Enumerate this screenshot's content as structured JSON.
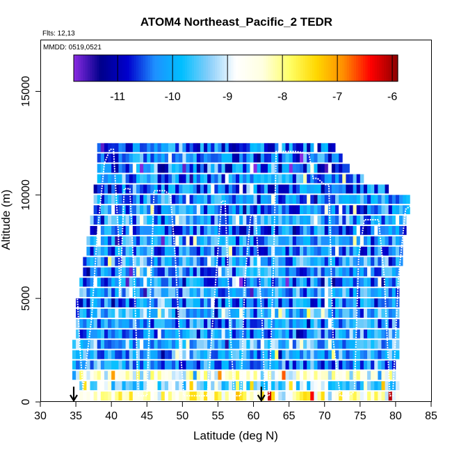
{
  "chart_data": {
    "type": "heatmap",
    "title": "ATOM4 Northeast_Pacific_2 TEDR",
    "flights_label": "Flts: 12,13",
    "dates_label": "MMDD: 0519,0521",
    "xlabel": "Latitude (deg N)",
    "ylabel": "Altitude (m)",
    "xlim": [
      30,
      85
    ],
    "ylim": [
      0,
      17500
    ],
    "xticks": [
      "30",
      "35",
      "40",
      "45",
      "50",
      "55",
      "60",
      "65",
      "70",
      "75",
      "80",
      "85"
    ],
    "yticks": [
      "0",
      "5000",
      "10000",
      "15000"
    ],
    "colorbar": {
      "range": [
        -11.8,
        -5.9
      ],
      "ticks": [
        "-11",
        "-10",
        "-9",
        "-8",
        "-7",
        "-6"
      ],
      "colors": [
        "#8a2be2",
        "#00008b",
        "#0000cd",
        "#1e90ff",
        "#00bfff",
        "#87cefa",
        "#ffffff",
        "#ffffe0",
        "#ffff66",
        "#ffd700",
        "#ff8c00",
        "#ff0000",
        "#8b0000"
      ]
    },
    "cells": {
      "bin_size_lat": 0.5,
      "bin_size_alt": 500,
      "rows": [
        {
          "alt": 250,
          "lat_min": 35.5,
          "lat_max": 80.5,
          "base": -8.2
        },
        {
          "alt": 750,
          "lat_min": 35.5,
          "lat_max": 80.5,
          "base": -9.3
        },
        {
          "alt": 1250,
          "lat_min": 34.5,
          "lat_max": 80.0,
          "base": -8.6
        },
        {
          "alt": 1750,
          "lat_min": 34.5,
          "lat_max": 80.0,
          "base": -10.1
        },
        {
          "alt": 2250,
          "lat_min": 34.5,
          "lat_max": 80.5,
          "base": -10.0
        },
        {
          "alt": 2750,
          "lat_min": 34.5,
          "lat_max": 80.5,
          "base": -9.8
        },
        {
          "alt": 3250,
          "lat_min": 35.0,
          "lat_max": 80.5,
          "base": -10.2
        },
        {
          "alt": 3750,
          "lat_min": 35.0,
          "lat_max": 80.5,
          "base": -10.1
        },
        {
          "alt": 4250,
          "lat_min": 35.0,
          "lat_max": 80.5,
          "base": -9.9
        },
        {
          "alt": 4750,
          "lat_min": 35.0,
          "lat_max": 80.5,
          "base": -10.3
        },
        {
          "alt": 5250,
          "lat_min": 35.5,
          "lat_max": 80.5,
          "base": -10.0
        },
        {
          "alt": 5750,
          "lat_min": 35.5,
          "lat_max": 80.5,
          "base": -10.2
        },
        {
          "alt": 6250,
          "lat_min": 36.0,
          "lat_max": 80.5,
          "base": -10.1
        },
        {
          "alt": 6750,
          "lat_min": 36.0,
          "lat_max": 81.0,
          "base": -10.0
        },
        {
          "alt": 7250,
          "lat_min": 36.5,
          "lat_max": 81.0,
          "base": -10.2
        },
        {
          "alt": 7750,
          "lat_min": 36.5,
          "lat_max": 81.0,
          "base": -10.1
        },
        {
          "alt": 8250,
          "lat_min": 37.0,
          "lat_max": 81.5,
          "base": -10.3
        },
        {
          "alt": 8750,
          "lat_min": 37.0,
          "lat_max": 81.5,
          "base": -10.0
        },
        {
          "alt": 9250,
          "lat_min": 37.5,
          "lat_max": 82.0,
          "base": -10.2
        },
        {
          "alt": 9750,
          "lat_min": 37.5,
          "lat_max": 82.0,
          "base": -10.1
        },
        {
          "alt": 10250,
          "lat_min": 37.5,
          "lat_max": 79.0,
          "base": -10.4
        },
        {
          "alt": 10750,
          "lat_min": 38.0,
          "lat_max": 75.5,
          "base": -10.2
        },
        {
          "alt": 11250,
          "lat_min": 38.0,
          "lat_max": 73.5,
          "base": -10.5
        },
        {
          "alt": 11750,
          "lat_min": 38.0,
          "lat_max": 72.5,
          "base": -10.3
        },
        {
          "alt": 12250,
          "lat_min": 38.0,
          "lat_max": 71.5,
          "base": -10.4
        }
      ]
    },
    "series": [
      {
        "name": "flight-altitude-track",
        "lat": [
          35.2,
          35.6,
          36.0,
          37.2,
          38.0,
          39.0,
          39.8,
          40.3,
          41.0,
          41.2,
          41.8,
          42.6,
          43.2,
          43.8,
          45.0,
          46.0,
          47.5,
          48.3,
          49.0,
          49.6,
          50.2,
          51.0,
          52.0,
          53.5,
          55.5,
          56.0,
          56.8,
          57.3,
          58.2,
          58.8,
          59.6,
          60.3,
          61.2,
          61.6,
          62.2,
          62.8,
          63.2,
          63.8,
          64.6,
          66.0,
          67.8,
          68.4,
          69.0,
          70.0,
          70.6,
          71.2,
          72.2,
          73.4,
          74.2,
          74.8,
          75.6,
          76.4,
          77.6,
          78.4,
          79.2,
          79.6,
          80.4,
          81.4,
          82.2
        ],
        "alt": [
          5100,
          2500,
          600,
          4000,
          8000,
          11500,
          12200,
          12200,
          8000,
          5000,
          10300,
          10300,
          6000,
          300,
          300,
          10200,
          10200,
          10000,
          7000,
          3000,
          300,
          300,
          300,
          300,
          9700,
          9700,
          3000,
          300,
          300,
          6000,
          9000,
          9000,
          4000,
          300,
          300,
          6500,
          12100,
          12100,
          12100,
          12100,
          12000,
          10800,
          10800,
          10500,
          10500,
          3000,
          300,
          300,
          500,
          7000,
          8800,
          8800,
          8800,
          6000,
          300,
          300,
          6000,
          9300,
          9500
        ]
      }
    ],
    "markers": [
      {
        "type": "arrow-down",
        "lat": 34.7
      },
      {
        "type": "arrow-down",
        "lat": 61.1
      }
    ]
  }
}
